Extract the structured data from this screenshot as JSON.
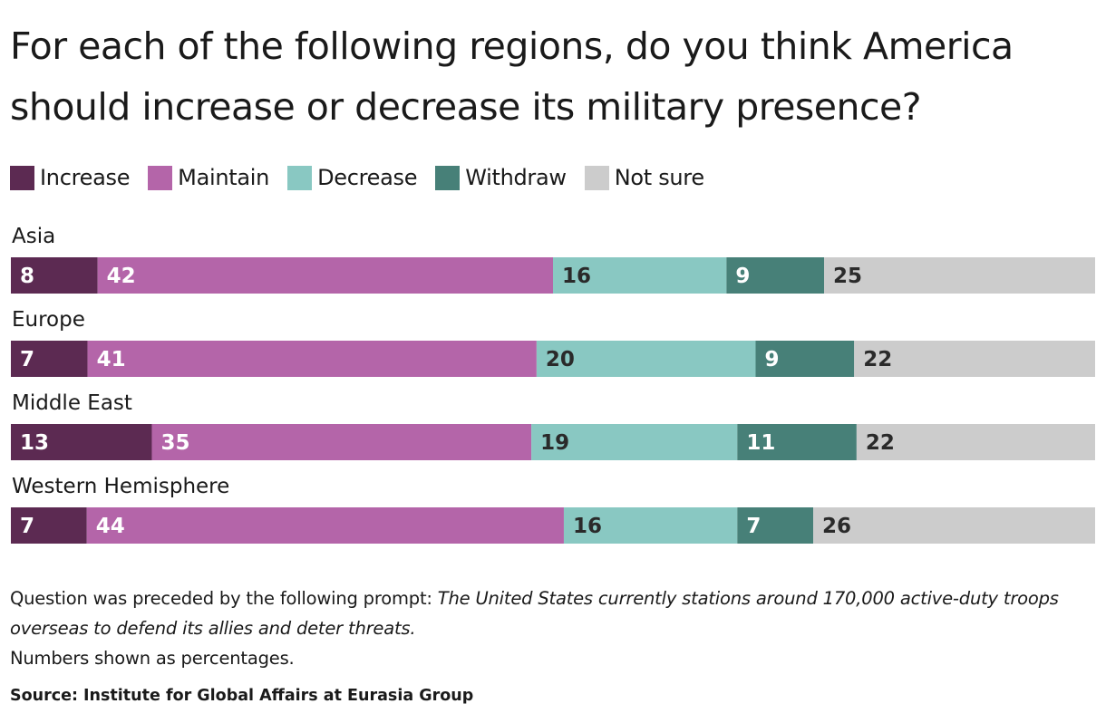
{
  "title": "For each of the following regions, do you think America should increase or decrease its military presence?",
  "legend": [
    {
      "label": "Increase",
      "color": "#5c2a52"
    },
    {
      "label": "Maintain",
      "color": "#b465a9"
    },
    {
      "label": "Decrease",
      "color": "#89c8c2"
    },
    {
      "label": "Withdraw",
      "color": "#478078"
    },
    {
      "label": "Not sure",
      "color": "#cccccc"
    }
  ],
  "chart_data": {
    "type": "bar",
    "orientation": "horizontal",
    "stacked": true,
    "title": "For each of the following regions, do you think America should increase or decrease its military presence?",
    "categories": [
      "Asia",
      "Europe",
      "Middle East",
      "Western Hemisphere"
    ],
    "series": [
      {
        "name": "Increase",
        "values": [
          8,
          7,
          13,
          7
        ],
        "color": "#5c2a52",
        "label_color": "#ffffff"
      },
      {
        "name": "Maintain",
        "values": [
          42,
          41,
          35,
          44
        ],
        "color": "#b465a9",
        "label_color": "#ffffff"
      },
      {
        "name": "Decrease",
        "values": [
          16,
          20,
          19,
          16
        ],
        "color": "#89c8c2",
        "label_color": "#2a2a2a"
      },
      {
        "name": "Withdraw",
        "values": [
          9,
          9,
          11,
          7
        ],
        "color": "#478078",
        "label_color": "#ffffff"
      },
      {
        "name": "Not sure",
        "values": [
          25,
          22,
          22,
          26
        ],
        "color": "#cccccc",
        "label_color": "#2a2a2a"
      }
    ],
    "xlim": [
      0,
      100
    ],
    "grid": false,
    "legend_position": "top-left"
  },
  "note": {
    "prefix": "Question was preceded by the following prompt: ",
    "prompt": "The United States currently stations around 170,000 active-duty troops overseas to defend its allies and deter threats.",
    "units": "Numbers shown as percentages."
  },
  "source": "Source: Institute for Global Affairs at Eurasia Group"
}
